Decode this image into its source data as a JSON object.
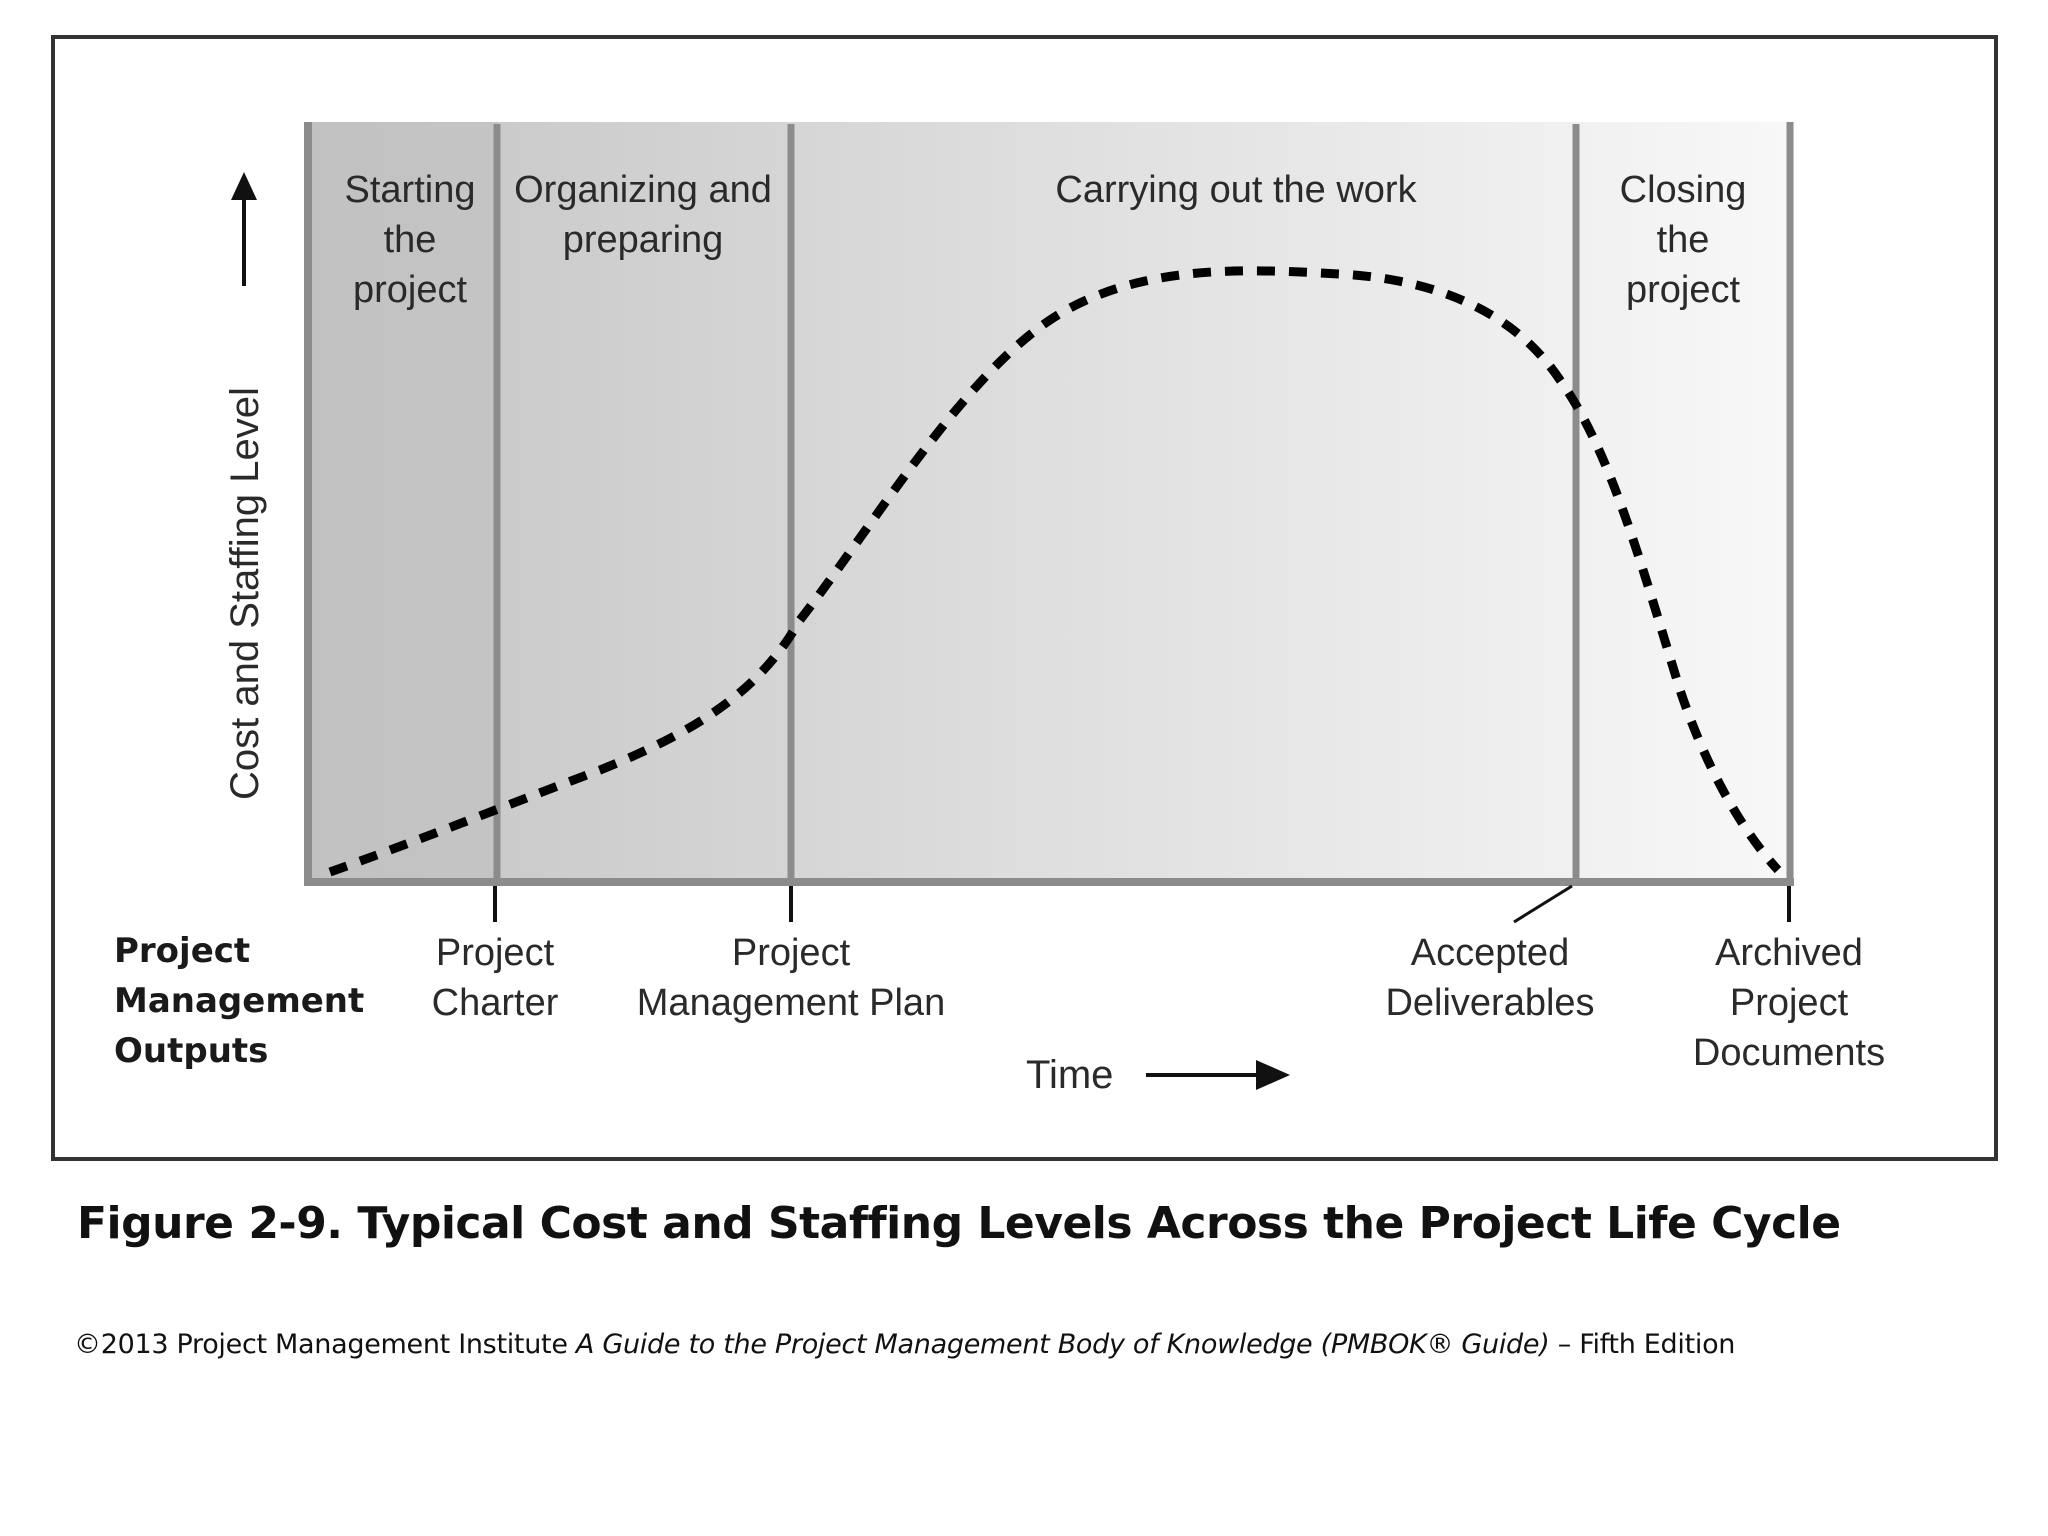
{
  "phases": [
    {
      "lines": [
        "Starting",
        "the",
        "project"
      ]
    },
    {
      "lines": [
        "Organizing and",
        "preparing"
      ]
    },
    {
      "lines": [
        "Carrying out the work"
      ]
    },
    {
      "lines": [
        "Closing",
        "the",
        "project"
      ]
    }
  ],
  "y_axis_label": "Cost and Staffing Level",
  "x_axis_label": "Time",
  "outputs_heading": [
    "Project",
    "Management",
    "Outputs"
  ],
  "outputs": [
    {
      "lines": [
        "Project",
        "Charter"
      ]
    },
    {
      "lines": [
        "Project",
        "Management Plan"
      ]
    },
    {
      "lines": [
        "Accepted",
        "Deliverables"
      ]
    },
    {
      "lines": [
        "Archived",
        "Project",
        "Documents"
      ]
    }
  ],
  "caption": "Figure 2-9. Typical Cost and Staffing Levels Across the Project Life Cycle",
  "source": {
    "prefix": "©2013 Project Management Institute ",
    "title": "A Guide to the Project Management Body of Knowledge (PMBOK® Guide)",
    "suffix": " – Fifth Edition"
  },
  "colors": {
    "frame": "#333333",
    "phase_divider": "#8c8c8c",
    "curve": "#000000",
    "band_dark": "#c8c8c8",
    "band_light": "#f6f6f6"
  }
}
